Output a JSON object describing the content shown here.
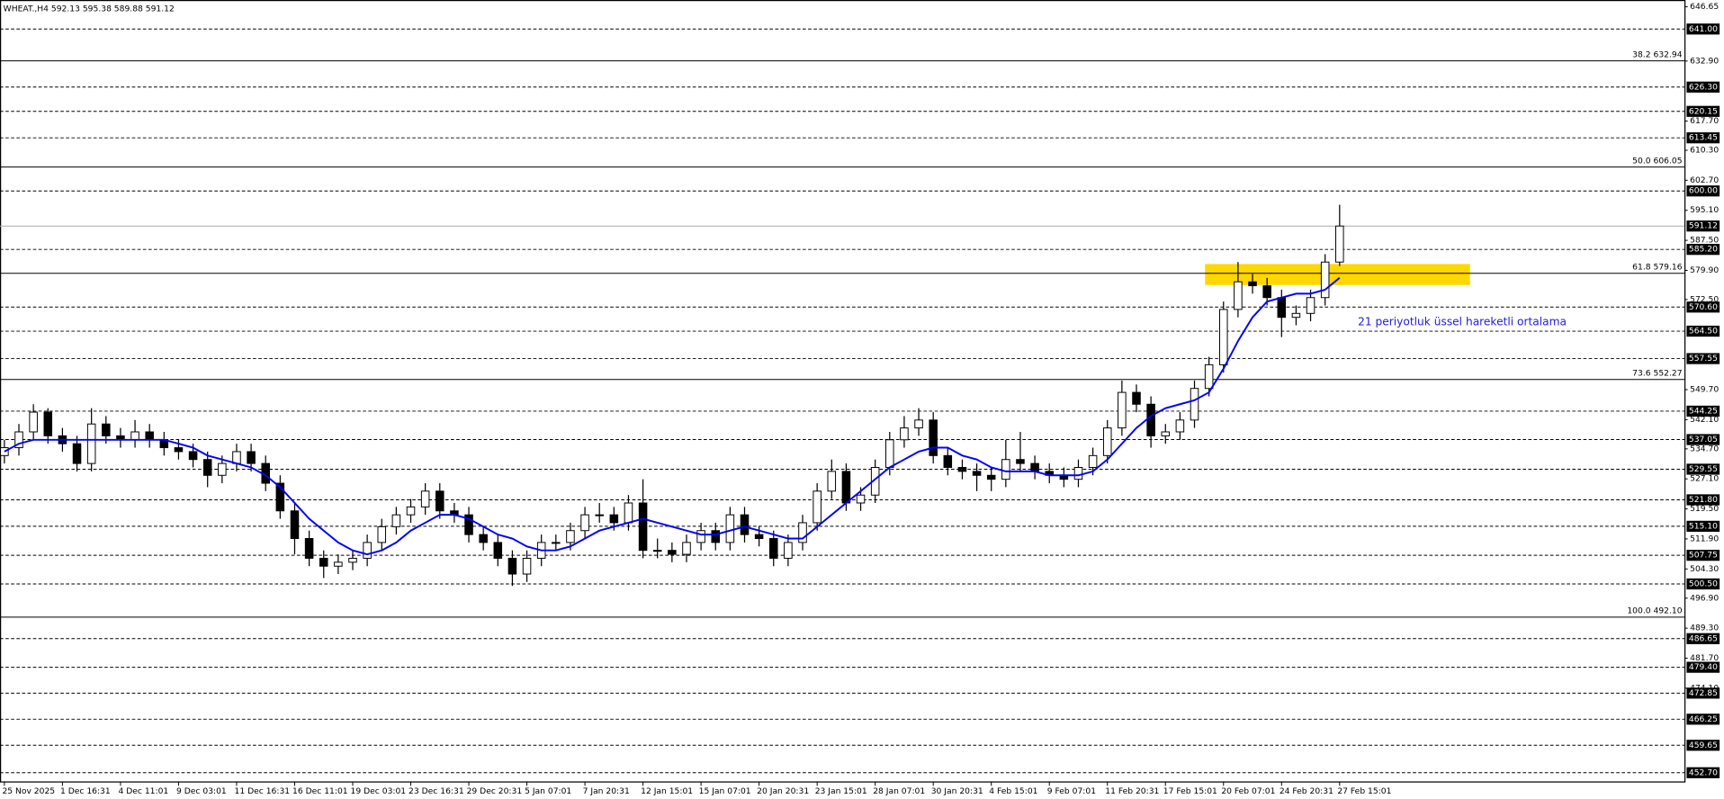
{
  "chart_data": {
    "type": "candlestick",
    "header": "WHEAT.,H4  592.13 595.38 589.88 591.12",
    "annotation": "21 periyotluk üssel hareketli ortalama",
    "ylim": [
      450.5,
      648.35
    ],
    "yticks": [
      646.65,
      {
        "value": 632.9,
        "label": "632.90"
      },
      {
        "value": 617.7,
        "label": "617.70"
      },
      {
        "value": 610.3,
        "label": "610.30"
      },
      {
        "value": 602.7,
        "label": "602.70"
      },
      {
        "value": 595.1,
        "label": "595.10"
      },
      {
        "value": 587.5,
        "label": "587.50"
      },
      {
        "value": 579.9,
        "label": "579.90"
      },
      {
        "value": 572.5,
        "label": "572.50"
      },
      {
        "value": 549.7,
        "label": "549.70"
      },
      {
        "value": 542.1,
        "label": "542.10"
      },
      {
        "value": 534.7,
        "label": "534.70"
      },
      {
        "value": 527.1,
        "label": "527.10"
      },
      {
        "value": 519.5,
        "label": "519.50"
      },
      {
        "value": 511.9,
        "label": "511.90"
      },
      {
        "value": 504.3,
        "label": "504.30"
      },
      {
        "value": 496.9,
        "label": "496.90"
      },
      {
        "value": 489.3,
        "label": "489.30"
      },
      {
        "value": 481.7,
        "label": "481.70"
      },
      {
        "value": 474.1,
        "label": "474.10"
      }
    ],
    "levels": [
      {
        "value": 641,
        "label": "641.00"
      },
      {
        "value": 626.3,
        "label": "626.30"
      },
      620.15,
      613.45,
      {
        "value": 600,
        "label": "600.00"
      },
      {
        "value": 585.2,
        "label": "585.20"
      },
      {
        "value": 570.6,
        "label": "570.60"
      },
      {
        "value": 564.5,
        "label": "564.50"
      },
      557.55,
      544.25,
      537.05,
      529.55,
      {
        "value": 521.8,
        "label": "521.80"
      },
      {
        "value": 515.1,
        "label": "515.10"
      },
      507.75,
      {
        "value": 500.5,
        "label": "500.50"
      },
      486.65,
      {
        "value": 479.4,
        "label": "479.40"
      },
      472.85,
      466.25,
      459.65,
      {
        "value": 452.7,
        "label": "452.70"
      }
    ],
    "fib_levels": [
      {
        "ratio": "38.2",
        "price": 632.94
      },
      {
        "ratio": "50.0",
        "price": 606.05
      },
      {
        "ratio": "61.8",
        "price": 579.16
      },
      {
        "ratio": "73.6",
        "price": 552.27
      },
      {
        "ratio": "100.0",
        "price": {
          "value": 492.1,
          "label": "492.10"
        }
      }
    ],
    "current_price": 591.12,
    "zone": {
      "top": 581.5,
      "bottom": 576.2,
      "color": "#ffd700"
    },
    "x_axis_labels": [
      "25 Nov 2025",
      "1 Dec 16:31",
      "4 Dec 11:01",
      "9 Dec 03:01",
      "11 Dec 16:31",
      "16 Dec 11:01",
      "19 Dec 03:01",
      "23 Dec 16:31",
      "29 Dec 20:31",
      "5 Jan 07:01",
      "7 Jan 20:31",
      "12 Jan 15:01",
      "15 Jan 07:01",
      "20 Jan 20:31",
      "23 Jan 15:01",
      "28 Jan 07:01",
      "30 Jan 20:31",
      "4 Feb 15:01",
      "9 Feb 07:01",
      "11 Feb 20:31",
      "17 Feb 15:01",
      "20 Feb 07:01",
      "24 Feb 20:31",
      "27 Feb 15:01"
    ],
    "ohlc": [
      [
        533,
        537,
        531,
        535
      ],
      [
        535,
        541,
        533,
        539
      ],
      [
        539,
        546,
        537,
        544
      ],
      [
        544,
        545,
        536,
        538
      ],
      [
        538,
        540,
        534,
        536
      ],
      [
        536,
        538,
        529,
        531
      ],
      [
        531,
        545,
        529,
        541
      ],
      [
        541,
        543,
        536,
        538
      ],
      [
        538,
        540,
        535,
        537
      ],
      [
        537,
        542,
        535,
        539
      ],
      [
        539,
        541,
        535,
        537
      ],
      [
        537,
        539,
        533,
        535
      ],
      [
        535,
        537,
        532,
        534
      ],
      [
        534,
        536,
        530,
        532
      ],
      [
        532,
        534,
        525,
        528
      ],
      [
        528,
        533,
        526,
        531
      ],
      [
        531,
        536,
        529,
        534
      ],
      [
        534,
        536,
        529,
        531
      ],
      [
        531,
        533,
        524,
        526
      ],
      [
        526,
        528,
        517,
        519
      ],
      [
        519,
        521,
        508,
        512
      ],
      [
        512,
        514,
        505,
        507
      ],
      [
        507,
        509,
        502,
        505
      ],
      [
        505,
        508,
        503,
        506
      ],
      [
        506,
        509,
        504,
        507
      ],
      [
        507,
        513,
        505,
        511
      ],
      [
        511,
        517,
        509,
        515
      ],
      [
        515,
        520,
        513,
        518
      ],
      [
        518,
        522,
        516,
        520
      ],
      [
        520,
        526,
        518,
        524
      ],
      [
        524,
        526,
        517,
        519
      ],
      [
        519,
        521,
        516,
        518
      ],
      [
        518,
        520,
        511,
        513
      ],
      [
        513,
        515,
        509,
        511
      ],
      [
        511,
        513,
        505,
        507
      ],
      [
        507,
        509,
        500,
        503
      ],
      [
        503,
        509,
        501,
        507
      ],
      [
        507,
        513,
        505,
        511
      ],
      [
        511,
        513,
        509,
        511
      ],
      [
        511,
        516,
        509,
        514
      ],
      [
        514,
        520,
        512,
        518
      ],
      [
        518,
        521,
        516,
        518
      ],
      [
        518,
        520,
        514,
        516
      ],
      [
        516,
        523,
        514,
        521
      ],
      [
        521,
        527,
        507,
        509
      ],
      [
        509,
        512,
        507,
        509
      ],
      [
        509,
        511,
        506,
        508
      ],
      [
        508,
        513,
        506,
        511
      ],
      [
        511,
        516,
        509,
        514
      ],
      [
        514,
        516,
        509,
        511
      ],
      [
        511,
        520,
        509,
        518
      ],
      [
        518,
        520,
        511,
        513
      ],
      [
        513,
        515,
        510,
        512
      ],
      [
        512,
        514,
        505,
        507
      ],
      [
        507,
        513,
        505,
        511
      ],
      [
        511,
        518,
        509,
        516
      ],
      [
        516,
        526,
        514,
        524
      ],
      [
        524,
        532,
        522,
        529
      ],
      [
        529,
        531,
        519,
        521
      ],
      [
        521,
        525,
        519,
        523
      ],
      [
        523,
        532,
        521,
        530
      ],
      [
        530,
        539,
        528,
        537
      ],
      [
        537,
        543,
        535,
        540
      ],
      [
        540,
        545,
        538,
        542
      ],
      [
        542,
        544,
        531,
        533
      ],
      [
        533,
        535,
        528,
        530
      ],
      [
        530,
        532,
        527,
        529
      ],
      [
        529,
        531,
        524,
        528
      ],
      [
        528,
        530,
        524,
        527
      ],
      [
        527,
        537,
        525,
        532
      ],
      [
        532,
        539,
        529,
        531
      ],
      [
        531,
        533,
        527,
        529
      ],
      [
        529,
        531,
        526,
        528
      ],
      [
        528,
        530,
        525,
        527
      ],
      [
        527,
        532,
        525,
        530
      ],
      [
        530,
        535,
        528,
        533
      ],
      [
        533,
        542,
        531,
        540
      ],
      [
        540,
        552,
        538,
        549
      ],
      [
        549,
        551,
        544,
        546
      ],
      [
        546,
        548,
        535,
        538
      ],
      [
        538,
        541,
        536,
        539
      ],
      [
        539,
        544,
        537,
        542
      ],
      [
        542,
        552,
        540,
        550
      ],
      [
        550,
        558,
        548,
        556
      ],
      [
        556,
        572,
        554,
        570
      ],
      [
        570,
        582,
        568,
        577
      ],
      [
        577,
        579,
        574,
        576
      ],
      [
        576,
        578,
        571,
        573
      ],
      [
        573,
        575,
        563,
        568
      ],
      [
        568,
        571,
        566,
        569
      ],
      [
        569,
        575,
        567,
        573
      ],
      [
        573,
        584,
        571,
        582
      ],
      [
        582,
        596.5,
        581,
        591.12
      ]
    ],
    "ema": {
      "color": "#0000ff",
      "values": [
        534,
        536,
        537,
        537,
        537,
        537,
        537,
        537,
        537,
        537,
        537,
        537,
        536,
        535,
        533,
        532,
        531,
        530,
        528,
        525,
        521,
        517,
        514,
        511,
        509,
        508,
        509,
        511,
        514,
        516,
        518,
        518,
        517,
        515,
        513,
        512,
        510,
        509,
        509,
        510,
        512,
        514,
        515,
        516,
        517,
        516,
        515,
        514,
        513,
        513,
        514,
        515,
        514,
        513,
        512,
        512,
        515,
        518,
        521,
        524,
        527,
        530,
        532,
        534,
        535,
        535,
        533,
        532,
        530,
        529,
        529,
        529,
        528,
        528,
        528,
        529,
        532,
        536,
        540,
        543,
        545,
        546,
        547,
        549,
        555,
        562,
        568,
        572,
        573,
        574,
        574,
        575,
        578
      ]
    },
    "annotation_color": "#2020e0"
  }
}
